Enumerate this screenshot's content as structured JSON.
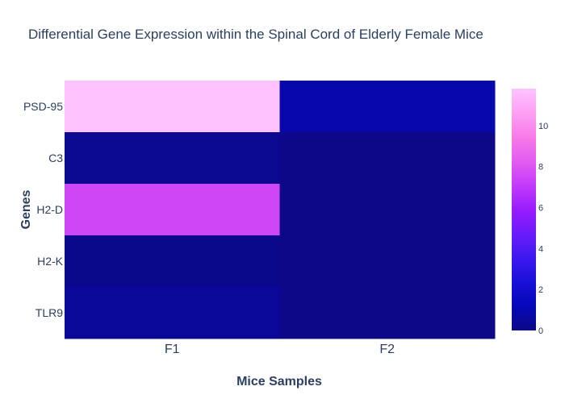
{
  "chart_data": {
    "type": "heatmap",
    "title": "Differential Gene Expression within the Spinal Cord of Elderly Female Mice",
    "xlabel": "Mice Samples",
    "ylabel": "Genes",
    "x": [
      "F1",
      "F2"
    ],
    "y": [
      "PSD-95",
      "C3",
      "H2-D",
      "H2-K",
      "TLR9"
    ],
    "z": [
      [
        11.8,
        0.9
      ],
      [
        0.2,
        0.0
      ],
      [
        7.5,
        0.0
      ],
      [
        0.1,
        0.0
      ],
      [
        0.4,
        0.0
      ]
    ],
    "colorscale": [
      [
        0.0,
        "#0d0887"
      ],
      [
        0.1,
        "#0508b8"
      ],
      [
        0.2,
        "#1910d8"
      ],
      [
        0.3,
        "#3c19f0"
      ],
      [
        0.4,
        "#6b1cfb"
      ],
      [
        0.5,
        "#981cfd"
      ],
      [
        0.6,
        "#c33bfa"
      ],
      [
        0.7,
        "#e35cf0"
      ],
      [
        0.8,
        "#f77be8"
      ],
      [
        0.9,
        "#fda0f4"
      ],
      [
        1.0,
        "#fec3fe"
      ]
    ],
    "zrange": [
      0,
      11.8
    ],
    "colorbar_ticks": [
      0,
      2,
      4,
      6,
      8,
      10
    ]
  }
}
